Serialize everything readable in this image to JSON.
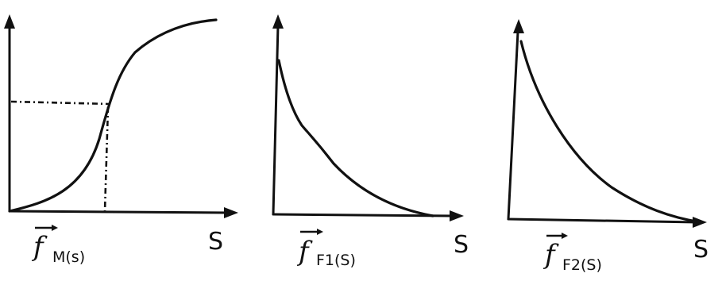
{
  "panels": [
    {
      "id": "m",
      "function_letter": "f",
      "function_suffix": "M(s)",
      "x_axis_label": "S",
      "curve_shape": "sigmoid-increasing",
      "has_guide_lines": true
    },
    {
      "id": "f1",
      "function_letter": "f",
      "function_suffix": "F1(S)",
      "x_axis_label": "S",
      "curve_shape": "decreasing",
      "has_guide_lines": false
    },
    {
      "id": "f2",
      "function_letter": "f",
      "function_suffix": "F2(S)",
      "x_axis_label": "S",
      "curve_shape": "decreasing",
      "has_guide_lines": false
    }
  ]
}
